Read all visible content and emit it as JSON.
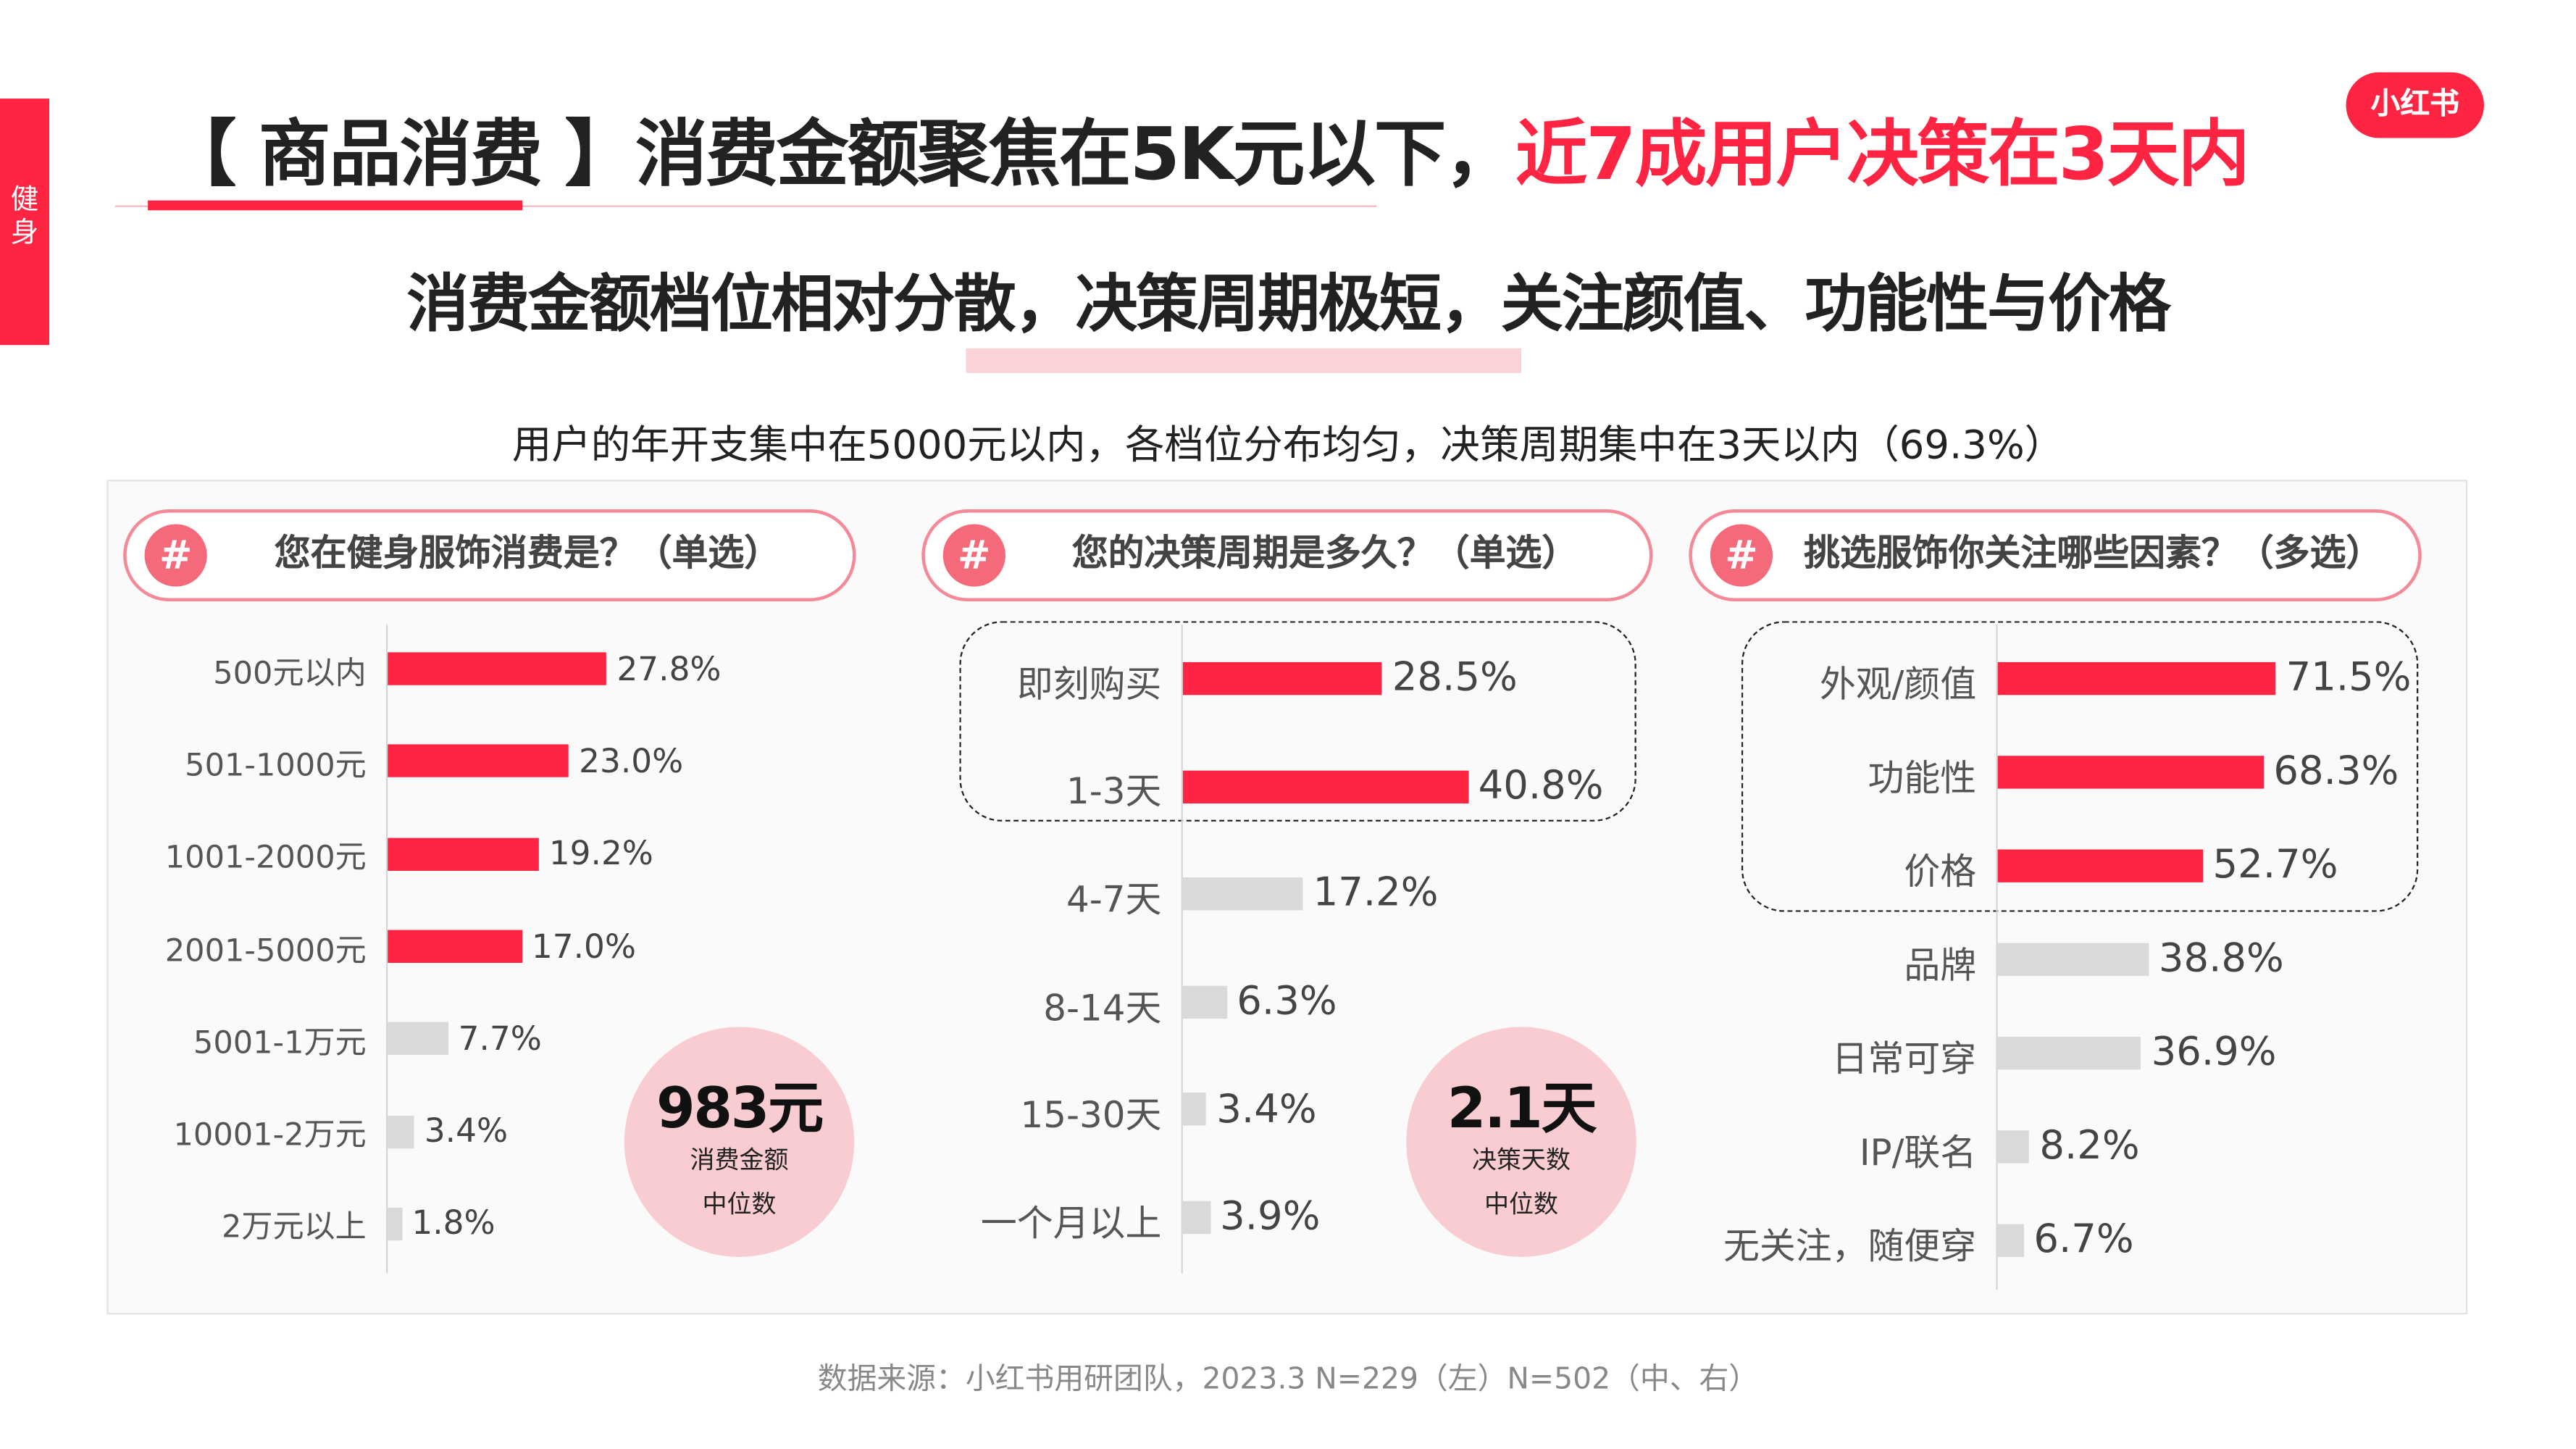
{
  "side_tab": {
    "label": "健身"
  },
  "header": {
    "title_prefix": "【 商品消费 】消费金额聚焦在5K元以下，",
    "title_highlight": "近7成用户决策在3天内",
    "logo": "小红书",
    "subtitle": "消费金额档位相对分散，决策周期极短，关注颜值、功能性与价格",
    "description": "用户的年开支集中在5000元以内，各档位分布均匀，决策周期集中在3天以内（69.3%）"
  },
  "colors": {
    "accent": "#ff2442",
    "muted_bar": "#d9d9d9",
    "median_circle": "#f9ccd1"
  },
  "icons": {
    "question": "hash-icon"
  },
  "chart_data": [
    {
      "type": "bar",
      "orientation": "horizontal",
      "title": "您在健身服饰消费是？（单选）",
      "categories": [
        "500元以内",
        "501-1000元",
        "1001-2000元",
        "2001-5000元",
        "5001-1万元",
        "10001-2万元",
        "2万元以上"
      ],
      "values": [
        27.8,
        23.0,
        19.2,
        17.0,
        7.7,
        3.4,
        1.8
      ],
      "value_labels": [
        "27.8%",
        "23.0%",
        "19.2%",
        "17.0%",
        "7.7%",
        "3.4%",
        "1.8%"
      ],
      "highlighted": [
        true,
        true,
        true,
        true,
        false,
        false,
        false
      ],
      "median": {
        "value": "983元",
        "line1": "消费金额",
        "line2": "中位数"
      }
    },
    {
      "type": "bar",
      "orientation": "horizontal",
      "title": "您的决策周期是多久？（单选）",
      "categories": [
        "即刻购买",
        "1-3天",
        "4-7天",
        "8-14天",
        "15-30天",
        "一个月以上"
      ],
      "values": [
        28.5,
        40.8,
        17.2,
        6.3,
        3.4,
        3.9
      ],
      "value_labels": [
        "28.5%",
        "40.8%",
        "17.2%",
        "6.3%",
        "3.4%",
        "3.9%"
      ],
      "highlighted": [
        true,
        true,
        false,
        false,
        false,
        false
      ],
      "median": {
        "value": "2.1天",
        "line1": "决策天数",
        "line2": "中位数"
      }
    },
    {
      "type": "bar",
      "orientation": "horizontal",
      "title": "挑选服饰你关注哪些因素？（多选）",
      "categories": [
        "外观/颜值",
        "功能性",
        "价格",
        "品牌",
        "日常可穿",
        "IP/联名",
        "无关注，随便穿"
      ],
      "values": [
        71.5,
        68.3,
        52.7,
        38.8,
        36.9,
        8.2,
        6.7
      ],
      "value_labels": [
        "71.5%",
        "68.3%",
        "52.7%",
        "38.8%",
        "36.9%",
        "8.2%",
        "6.7%"
      ],
      "highlighted": [
        true,
        true,
        true,
        false,
        false,
        false,
        false
      ]
    }
  ],
  "footer": {
    "source": "数据来源：小红书用研团队，2023.3 N=229（左）N=502（中、右）"
  }
}
